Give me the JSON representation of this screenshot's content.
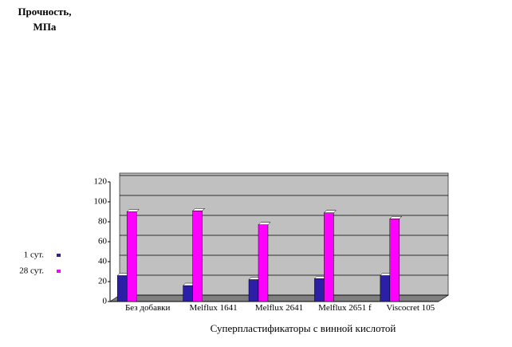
{
  "chart_data": {
    "type": "bar",
    "title": "Прочность, МПа",
    "x_label": "Суперпластификаторы с винной кислотой",
    "categories": [
      "Без добавки",
      "Melflux 1641",
      "Melflux 2641",
      "Melflux 2651 f",
      "Viscocret 105"
    ],
    "series": [
      {
        "name": "1 сут.",
        "color": "#2b1fa8",
        "values": [
          26,
          16,
          22,
          23,
          26
        ]
      },
      {
        "name": "28 сут.",
        "color": "#ff00ff",
        "values": [
          90,
          91,
          77,
          89,
          83
        ]
      }
    ],
    "ylim": [
      0,
      120
    ],
    "yticks": [
      0,
      20,
      40,
      60,
      80,
      100,
      120
    ],
    "grid": true
  }
}
